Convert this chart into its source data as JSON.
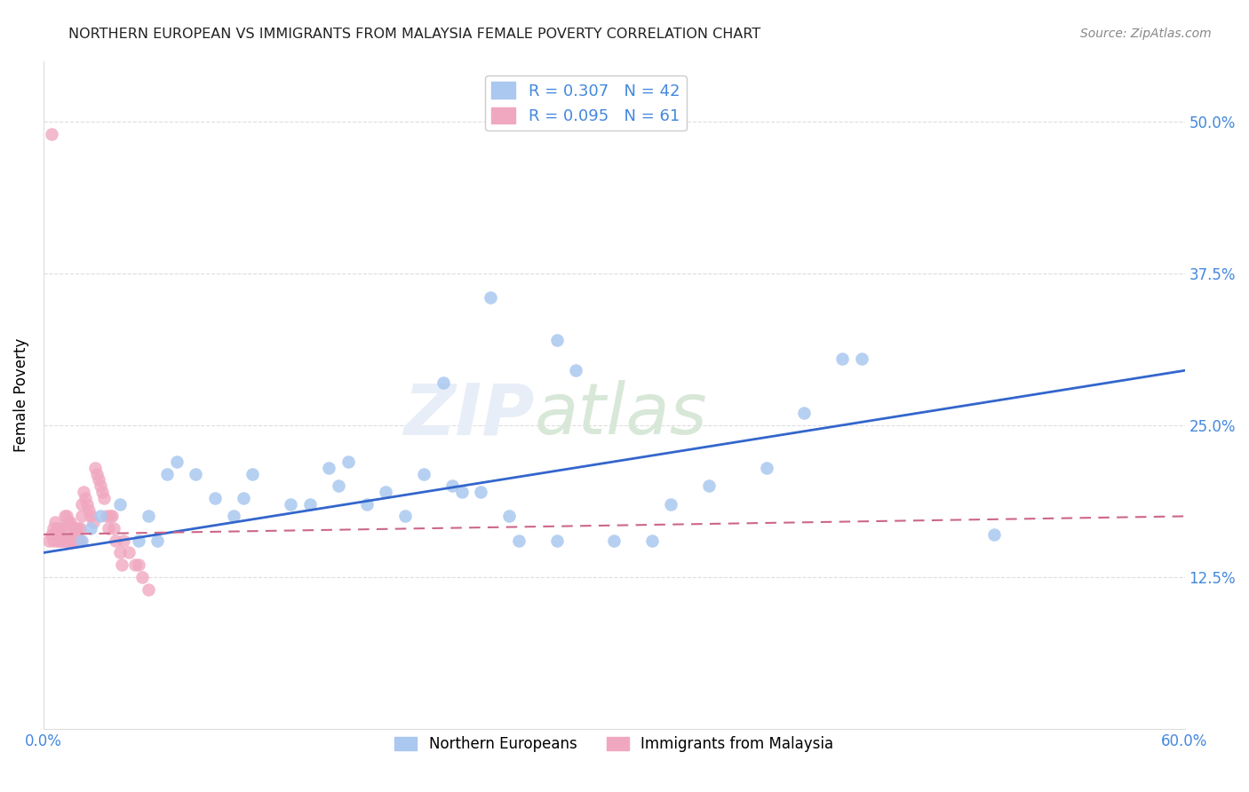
{
  "title": "NORTHERN EUROPEAN VS IMMIGRANTS FROM MALAYSIA FEMALE POVERTY CORRELATION CHART",
  "source": "Source: ZipAtlas.com",
  "ylabel": "Female Poverty",
  "watermark_text": "ZIP",
  "watermark_text2": "atlas",
  "xlim": [
    0.0,
    0.6
  ],
  "ylim": [
    0.0,
    0.55
  ],
  "xtick_positions": [
    0.0,
    0.1,
    0.2,
    0.3,
    0.4,
    0.5,
    0.6
  ],
  "xtick_labels": [
    "0.0%",
    "",
    "",
    "",
    "",
    "",
    "60.0%"
  ],
  "ytick_positions": [
    0.125,
    0.25,
    0.375,
    0.5
  ],
  "ytick_labels": [
    "12.5%",
    "25.0%",
    "37.5%",
    "50.0%"
  ],
  "series1_color": "#aac8f0",
  "series2_color": "#f0a8c0",
  "line1_color": "#3366cc",
  "line2_color": "#cc6688",
  "legend1_label_r": "R = 0.307",
  "legend1_label_n": "N = 42",
  "legend2_label_r": "R = 0.095",
  "legend2_label_n": "N = 61",
  "bottom_legend1": "Northern Europeans",
  "bottom_legend2": "Immigrants from Malaysia",
  "title_color": "#222222",
  "source_color": "#888888",
  "tick_color": "#4488dd",
  "grid_color": "#dddddd",
  "s1_x": [
    0.02,
    0.025,
    0.03,
    0.04,
    0.05,
    0.055,
    0.06,
    0.065,
    0.07,
    0.08,
    0.09,
    0.1,
    0.105,
    0.11,
    0.13,
    0.14,
    0.15,
    0.155,
    0.16,
    0.17,
    0.18,
    0.19,
    0.2,
    0.21,
    0.215,
    0.22,
    0.23,
    0.245,
    0.25,
    0.27,
    0.28,
    0.3,
    0.32,
    0.33,
    0.35,
    0.38,
    0.4,
    0.42,
    0.43,
    0.5,
    0.235,
    0.27
  ],
  "s1_y": [
    0.155,
    0.165,
    0.175,
    0.185,
    0.155,
    0.175,
    0.155,
    0.21,
    0.22,
    0.21,
    0.19,
    0.175,
    0.19,
    0.21,
    0.185,
    0.185,
    0.215,
    0.2,
    0.22,
    0.185,
    0.195,
    0.175,
    0.21,
    0.285,
    0.2,
    0.195,
    0.195,
    0.175,
    0.155,
    0.155,
    0.295,
    0.155,
    0.155,
    0.185,
    0.2,
    0.215,
    0.26,
    0.305,
    0.305,
    0.16,
    0.355,
    0.32
  ],
  "s2_x": [
    0.003,
    0.004,
    0.005,
    0.005,
    0.006,
    0.006,
    0.007,
    0.007,
    0.008,
    0.008,
    0.009,
    0.009,
    0.01,
    0.01,
    0.011,
    0.011,
    0.012,
    0.012,
    0.013,
    0.013,
    0.014,
    0.014,
    0.015,
    0.015,
    0.016,
    0.016,
    0.017,
    0.017,
    0.018,
    0.018,
    0.019,
    0.019,
    0.02,
    0.02,
    0.021,
    0.022,
    0.023,
    0.024,
    0.025,
    0.026,
    0.027,
    0.028,
    0.029,
    0.03,
    0.031,
    0.032,
    0.033,
    0.034,
    0.035,
    0.036,
    0.037,
    0.038,
    0.04,
    0.041,
    0.042,
    0.045,
    0.048,
    0.05,
    0.052,
    0.055,
    0.004
  ],
  "s2_y": [
    0.155,
    0.16,
    0.155,
    0.165,
    0.16,
    0.17,
    0.155,
    0.165,
    0.155,
    0.165,
    0.155,
    0.165,
    0.155,
    0.165,
    0.155,
    0.175,
    0.155,
    0.175,
    0.155,
    0.17,
    0.155,
    0.17,
    0.155,
    0.165,
    0.155,
    0.165,
    0.155,
    0.165,
    0.155,
    0.165,
    0.155,
    0.165,
    0.175,
    0.185,
    0.195,
    0.19,
    0.185,
    0.18,
    0.175,
    0.17,
    0.215,
    0.21,
    0.205,
    0.2,
    0.195,
    0.19,
    0.175,
    0.165,
    0.175,
    0.175,
    0.165,
    0.155,
    0.145,
    0.135,
    0.155,
    0.145,
    0.135,
    0.135,
    0.125,
    0.115,
    0.49
  ],
  "line1_x0": 0.0,
  "line1_x1": 0.6,
  "line1_y0": 0.145,
  "line1_y1": 0.295,
  "line2_x0": 0.0,
  "line2_x1": 0.6,
  "line2_y0": 0.16,
  "line2_y1": 0.175
}
